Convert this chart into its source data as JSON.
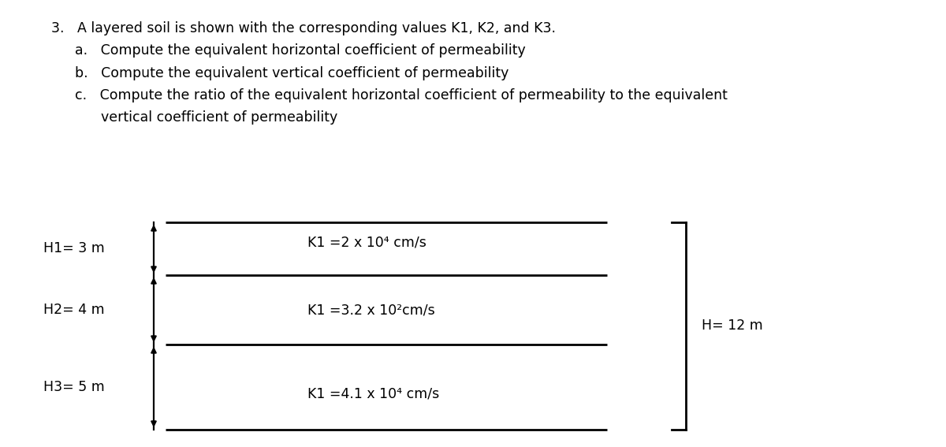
{
  "bg_color": "#ffffff",
  "text_color": "#000000",
  "title_line": "3.   A layered soil is shown with the corresponding values K1, K2, and K3.",
  "sub_a": "a.   Compute the equivalent horizontal coefficient of permeability",
  "sub_b": "b.   Compute the equivalent vertical coefficient of permeability",
  "sub_c": "c.   Compute the ratio of the equivalent horizontal coefficient of permeability to the equivalent",
  "sub_c2": "      vertical coefficient of permeability",
  "H1_label": "H1= 3 m",
  "H2_label": "H2= 4 m",
  "H3_label": "H3= 5 m",
  "H_total_label": "H= 12 m",
  "K1_label": "K1 =2 x 10⁴ cm/s",
  "K2_label": "K1 =3.2 x 10²cm/s",
  "K3_label": "K1 =4.1 x 10⁴ cm/s",
  "font_size_text": 12.5,
  "font_size_diagram": 12.5
}
